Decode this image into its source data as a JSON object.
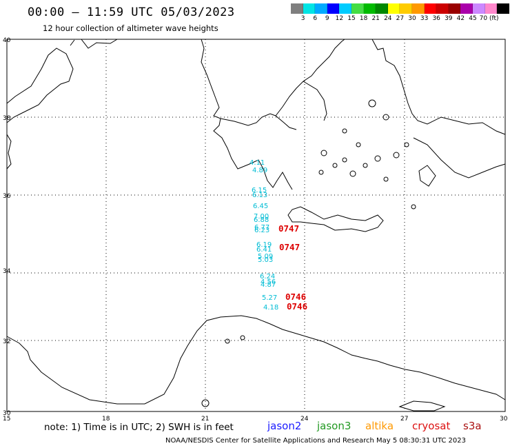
{
  "title": "00:00 – 11:59 UTC 05/03/2023",
  "subtitle": "12 hour collection of altimeter wave heights",
  "colorbar": {
    "colors": [
      "#7f7f7f",
      "#00e5e5",
      "#00aaff",
      "#0000ff",
      "#00ccff",
      "#44dd44",
      "#00bb00",
      "#008800",
      "#ffff00",
      "#ffcc00",
      "#ff9900",
      "#ff0000",
      "#cc0000",
      "#990000",
      "#aa00aa",
      "#cc88ff",
      "#ff88cc",
      "#000000"
    ],
    "labels": [
      "3",
      "6",
      "9",
      "12",
      "15",
      "18",
      "21",
      "24",
      "27",
      "30",
      "33",
      "36",
      "39",
      "42",
      "45",
      "70 (ft)"
    ]
  },
  "axes": {
    "lat_labels": [
      "40",
      "38",
      "36",
      "34",
      "32",
      "30"
    ],
    "lon_labels": [
      "15",
      "18",
      "21",
      "24",
      "27",
      "30"
    ]
  },
  "wave_heights": {
    "color": "#00bcd4",
    "values": [
      "4.11",
      "4.89",
      "6.15",
      "6.13",
      "6.45",
      "7.00",
      "6.88",
      "6.77",
      "6.23",
      "6.19",
      "6.41",
      "5.09",
      "5.03",
      "6.24",
      "4.56",
      "4.87",
      "5.27",
      "4.18"
    ]
  },
  "time_labels": {
    "color": "#dd0000",
    "values": [
      "0747",
      "0747",
      "0746",
      "0746"
    ]
  },
  "note": "note:  1) Time is in UTC;  2) SWH is in feet",
  "satellites": [
    {
      "name": "jason2",
      "color": "#1a1aff"
    },
    {
      "name": "jason3",
      "color": "#229922"
    },
    {
      "name": "altika",
      "color": "#ff9900"
    },
    {
      "name": "cryosat",
      "color": "#dd1111"
    },
    {
      "name": "s3a",
      "color": "#aa1111"
    }
  ],
  "footer": "NOAA/NESDIS Center for Satellite Applications and Research    May  5 08:30:31 UTC 2023"
}
